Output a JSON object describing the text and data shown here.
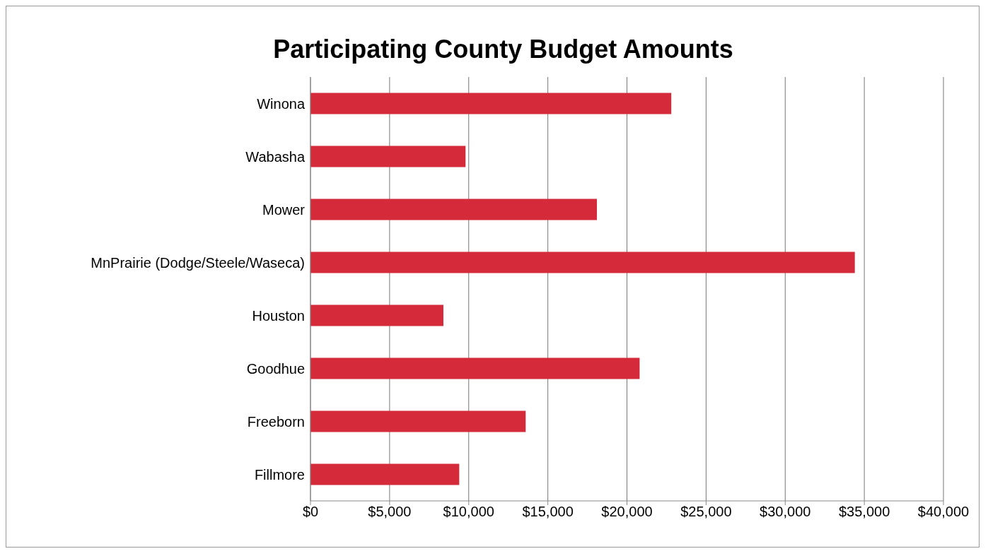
{
  "chart_data": {
    "type": "bar",
    "orientation": "horizontal",
    "title": "Participating County Budget Amounts",
    "categories": [
      "Winona",
      "Wabasha",
      "Mower",
      "MnPrairie (Dodge/Steele/Waseca)",
      "Houston",
      "Goodhue",
      "Freeborn",
      "Fillmore"
    ],
    "values": [
      22800,
      9800,
      18100,
      34400,
      8400,
      20800,
      13600,
      9400
    ],
    "color": "#d42a3a",
    "xlim": [
      0,
      40000
    ],
    "xticks": [
      {
        "value": 0,
        "label": "$0"
      },
      {
        "value": 5000,
        "label": "$5,000"
      },
      {
        "value": 10000,
        "label": "$10,000"
      },
      {
        "value": 15000,
        "label": "$15,000"
      },
      {
        "value": 20000,
        "label": "$20,000"
      },
      {
        "value": 25000,
        "label": "$25,000"
      },
      {
        "value": 30000,
        "label": "$30,000"
      },
      {
        "value": 35000,
        "label": "$35,000"
      },
      {
        "value": 40000,
        "label": "$40,000"
      }
    ],
    "grid": "x"
  }
}
